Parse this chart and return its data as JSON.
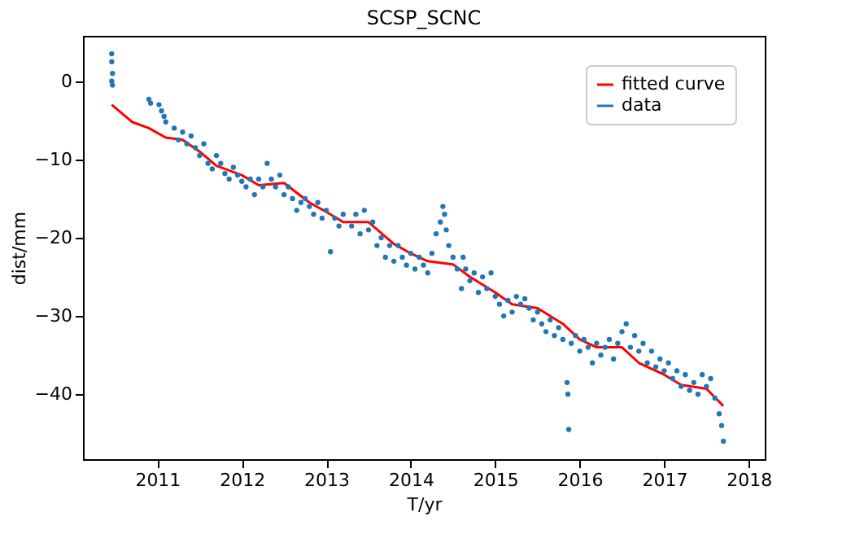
{
  "chart_data": {
    "type": "scatter",
    "title": "SCSP_SCNC",
    "xlabel": "T/yr",
    "ylabel": "dist/mm",
    "xlim": [
      2010.12,
      2018.19
    ],
    "xticks": [
      2011,
      2012,
      2013,
      2014,
      2015,
      2016,
      2017,
      2018
    ],
    "ylim": [
      -48.3,
      5.8
    ],
    "yticks": [
      -40,
      -30,
      -20,
      -10,
      0
    ],
    "grid": false,
    "legend": "top right",
    "series": [
      {
        "name": "fitted curve",
        "type": "line",
        "color": "#ff0000",
        "marker": "none",
        "line_style": "solid",
        "x": [
          2010.46,
          2010.7,
          2010.9,
          2011.1,
          2011.3,
          2011.5,
          2011.7,
          2012.0,
          2012.2,
          2012.5,
          2012.8,
          2013.0,
          2013.2,
          2013.5,
          2013.8,
          2014.0,
          2014.2,
          2014.5,
          2014.7,
          2015.0,
          2015.2,
          2015.5,
          2015.8,
          2016.0,
          2016.2,
          2016.5,
          2016.7,
          2017.0,
          2017.2,
          2017.5,
          2017.7
        ],
        "values": [
          -3,
          -5.2,
          -6,
          -7.2,
          -7.5,
          -9,
          -10.8,
          -12,
          -13.3,
          -13,
          -15.5,
          -16.7,
          -18,
          -18,
          -20.8,
          -22,
          -23,
          -23.4,
          -25,
          -27,
          -28.5,
          -29,
          -31,
          -33,
          -34,
          -34,
          -36,
          -37.5,
          -38.8,
          -39.3,
          -41.5
        ]
      },
      {
        "name": "data",
        "type": "scatter",
        "color": "#1f77b4",
        "marker": "circle",
        "x": [
          2010.46,
          2010.46,
          2010.47,
          2010.46,
          2010.47,
          2010.9,
          2010.92,
          2011.02,
          2011.05,
          2011.08,
          2011.1,
          2011.2,
          2011.25,
          2011.3,
          2011.35,
          2011.4,
          2011.45,
          2011.5,
          2011.55,
          2011.6,
          2011.65,
          2011.7,
          2011.75,
          2011.8,
          2011.85,
          2011.9,
          2011.95,
          2012.0,
          2012.05,
          2012.1,
          2012.15,
          2012.2,
          2012.25,
          2012.3,
          2012.35,
          2012.4,
          2012.45,
          2012.5,
          2012.55,
          2012.6,
          2012.65,
          2012.7,
          2012.75,
          2012.8,
          2012.85,
          2012.9,
          2012.95,
          2013.0,
          2013.05,
          2013.1,
          2013.15,
          2013.2,
          2013.3,
          2013.35,
          2013.4,
          2013.45,
          2013.5,
          2013.55,
          2013.6,
          2013.65,
          2013.7,
          2013.75,
          2013.8,
          2013.85,
          2013.9,
          2013.95,
          2014.0,
          2014.05,
          2014.1,
          2014.15,
          2014.2,
          2014.25,
          2014.3,
          2014.35,
          2014.38,
          2014.4,
          2014.42,
          2014.45,
          2014.5,
          2014.55,
          2014.6,
          2014.62,
          2014.65,
          2014.7,
          2014.75,
          2014.8,
          2014.85,
          2014.9,
          2014.95,
          2015.0,
          2015.05,
          2015.1,
          2015.15,
          2015.2,
          2015.25,
          2015.3,
          2015.35,
          2015.4,
          2015.45,
          2015.5,
          2015.55,
          2015.6,
          2015.65,
          2015.7,
          2015.75,
          2015.8,
          2015.85,
          2015.86,
          2015.87,
          2015.9,
          2015.95,
          2016.0,
          2016.05,
          2016.1,
          2016.15,
          2016.2,
          2016.25,
          2016.3,
          2016.35,
          2016.4,
          2016.45,
          2016.5,
          2016.55,
          2016.6,
          2016.65,
          2016.7,
          2016.75,
          2016.8,
          2016.85,
          2016.9,
          2016.95,
          2017.0,
          2017.05,
          2017.1,
          2017.15,
          2017.2,
          2017.25,
          2017.3,
          2017.35,
          2017.4,
          2017.45,
          2017.5,
          2017.55,
          2017.6,
          2017.65,
          2017.68,
          2017.7
        ],
        "values": [
          3.5,
          2.5,
          1.0,
          0.0,
          -0.5,
          -2.3,
          -2.8,
          -3.0,
          -3.8,
          -4.5,
          -5.2,
          -6.0,
          -7.5,
          -6.5,
          -8.0,
          -7.0,
          -8.5,
          -9.5,
          -8.0,
          -10.5,
          -11.2,
          -9.5,
          -10.5,
          -11.8,
          -12.5,
          -11.0,
          -12.0,
          -12.8,
          -13.5,
          -12.5,
          -14.5,
          -12.5,
          -13.5,
          -10.5,
          -12.5,
          -13.5,
          -12.0,
          -14.5,
          -13.5,
          -15.0,
          -16.5,
          -15.5,
          -15.0,
          -16.0,
          -17.0,
          -15.5,
          -17.5,
          -16.5,
          -21.8,
          -17.5,
          -18.5,
          -17.0,
          -18.5,
          -17.0,
          -19.5,
          -16.5,
          -19.0,
          -18.0,
          -21.0,
          -20.0,
          -22.5,
          -21.0,
          -23.0,
          -21.0,
          -22.5,
          -23.5,
          -22.0,
          -24.0,
          -22.5,
          -23.5,
          -24.5,
          -22.0,
          -19.5,
          -18.0,
          -16.0,
          -17.0,
          -19.0,
          -21.0,
          -22.5,
          -24.0,
          -26.5,
          -22.5,
          -24.0,
          -25.5,
          -24.5,
          -27.0,
          -25.0,
          -26.5,
          -24.5,
          -27.5,
          -28.5,
          -30.0,
          -28.0,
          -29.5,
          -27.5,
          -28.5,
          -27.8,
          -29.0,
          -30.5,
          -29.5,
          -31.0,
          -32.0,
          -30.5,
          -32.5,
          -31.5,
          -33.0,
          -38.5,
          -40.0,
          -44.5,
          -33.5,
          -32.5,
          -34.5,
          -33.0,
          -34.0,
          -36.0,
          -33.5,
          -35.0,
          -34.0,
          -33.0,
          -35.5,
          -33.5,
          -32.0,
          -31.0,
          -34.0,
          -32.5,
          -34.5,
          -33.5,
          -36.0,
          -34.5,
          -36.5,
          -35.5,
          -37.0,
          -36.0,
          -38.0,
          -37.0,
          -39.0,
          -37.5,
          -39.5,
          -38.5,
          -40.0,
          -37.5,
          -39.0,
          -38.0,
          -40.5,
          -42.5,
          -44.0,
          -46.0
        ]
      }
    ]
  }
}
